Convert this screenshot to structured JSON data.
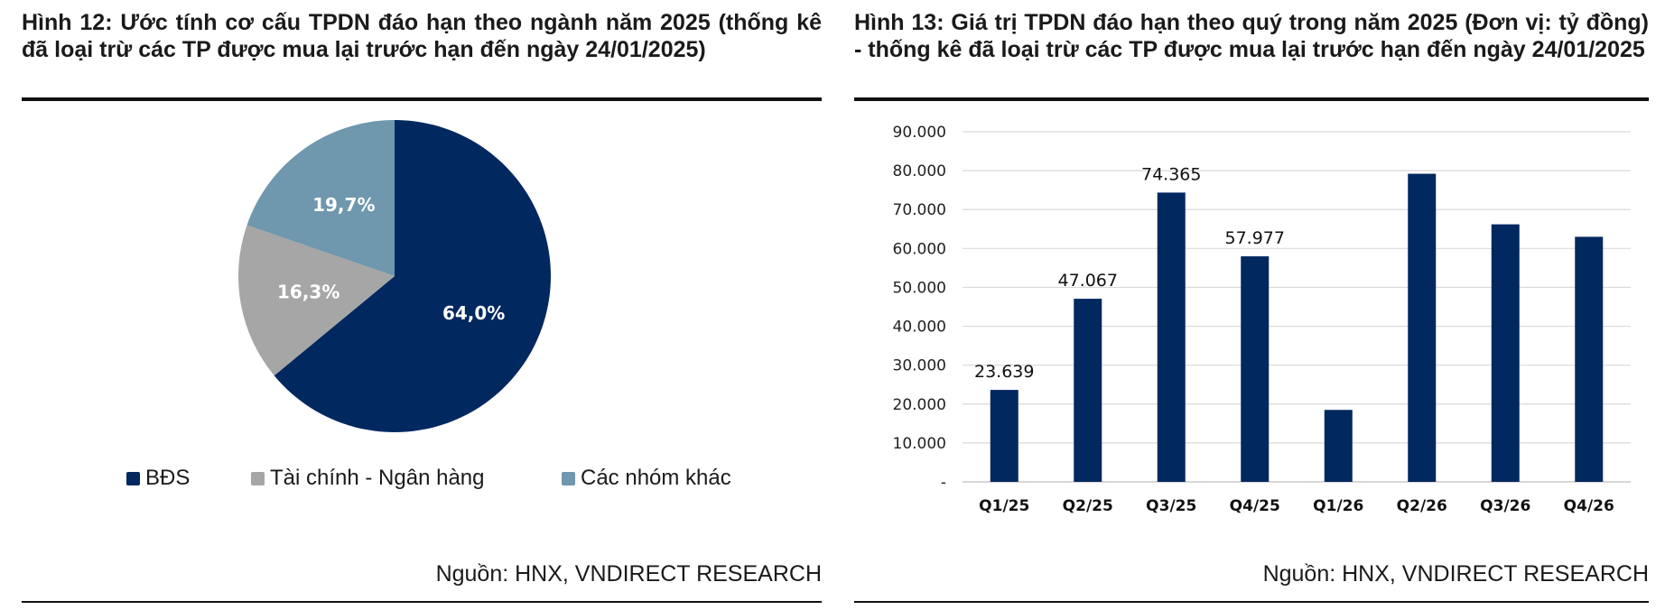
{
  "colors": {
    "navy": "#022860",
    "grey": "#a6a6a6",
    "steel": "#6f97ad",
    "grid": "#d9d9d9"
  },
  "left": {
    "title": "Hình 12: Ước tính cơ cấu TPDN đáo hạn theo ngành năm 2025 (thống kê đã loại trừ các TP được mua lại trước hạn đến ngày 24/01/2025)",
    "source": "Nguồn: HNX, VNDIRECT RESEARCH",
    "legend": [
      "BĐS",
      "Tài chính - Ngân hàng",
      "Các nhóm khác"
    ]
  },
  "right": {
    "title": "Hình 13: Giá trị TPDN đáo hạn theo quý trong năm 2025 (Đơn vị: tỷ đồng) - thống kê đã loại trừ các TP được mua lại trước hạn đến ngày 24/01/2025",
    "source": "Nguồn: HNX, VNDIRECT RESEARCH"
  },
  "chart_data": [
    {
      "type": "pie",
      "categories": [
        "BĐS",
        "Tài chính - Ngân hàng",
        "Các nhóm khác"
      ],
      "values": [
        64.0,
        16.3,
        19.7
      ],
      "labels": [
        "64,0%",
        "16,3%",
        "19,7%"
      ],
      "colors": [
        "#022860",
        "#a6a6a6",
        "#6f97ad"
      ],
      "legend": "bottom"
    },
    {
      "type": "bar",
      "categories": [
        "Q1/25",
        "Q2/25",
        "Q3/25",
        "Q4/25",
        "Q1/26",
        "Q2/26",
        "Q3/26",
        "Q4/26"
      ],
      "values": [
        23639,
        47067,
        74365,
        57977,
        18500,
        79200,
        66200,
        63000
      ],
      "data_labels": [
        "23.639",
        "47.067",
        "74.365",
        "57.977",
        "",
        "",
        "",
        ""
      ],
      "ylim": [
        0,
        90000
      ],
      "yticks": [
        0,
        10000,
        20000,
        30000,
        40000,
        50000,
        60000,
        70000,
        80000,
        90000
      ],
      "ytick_labels": [
        "-",
        "10.000",
        "20.000",
        "30.000",
        "40.000",
        "50.000",
        "60.000",
        "70.000",
        "80.000",
        "90.000"
      ],
      "grid": true,
      "color": "#022860"
    }
  ]
}
